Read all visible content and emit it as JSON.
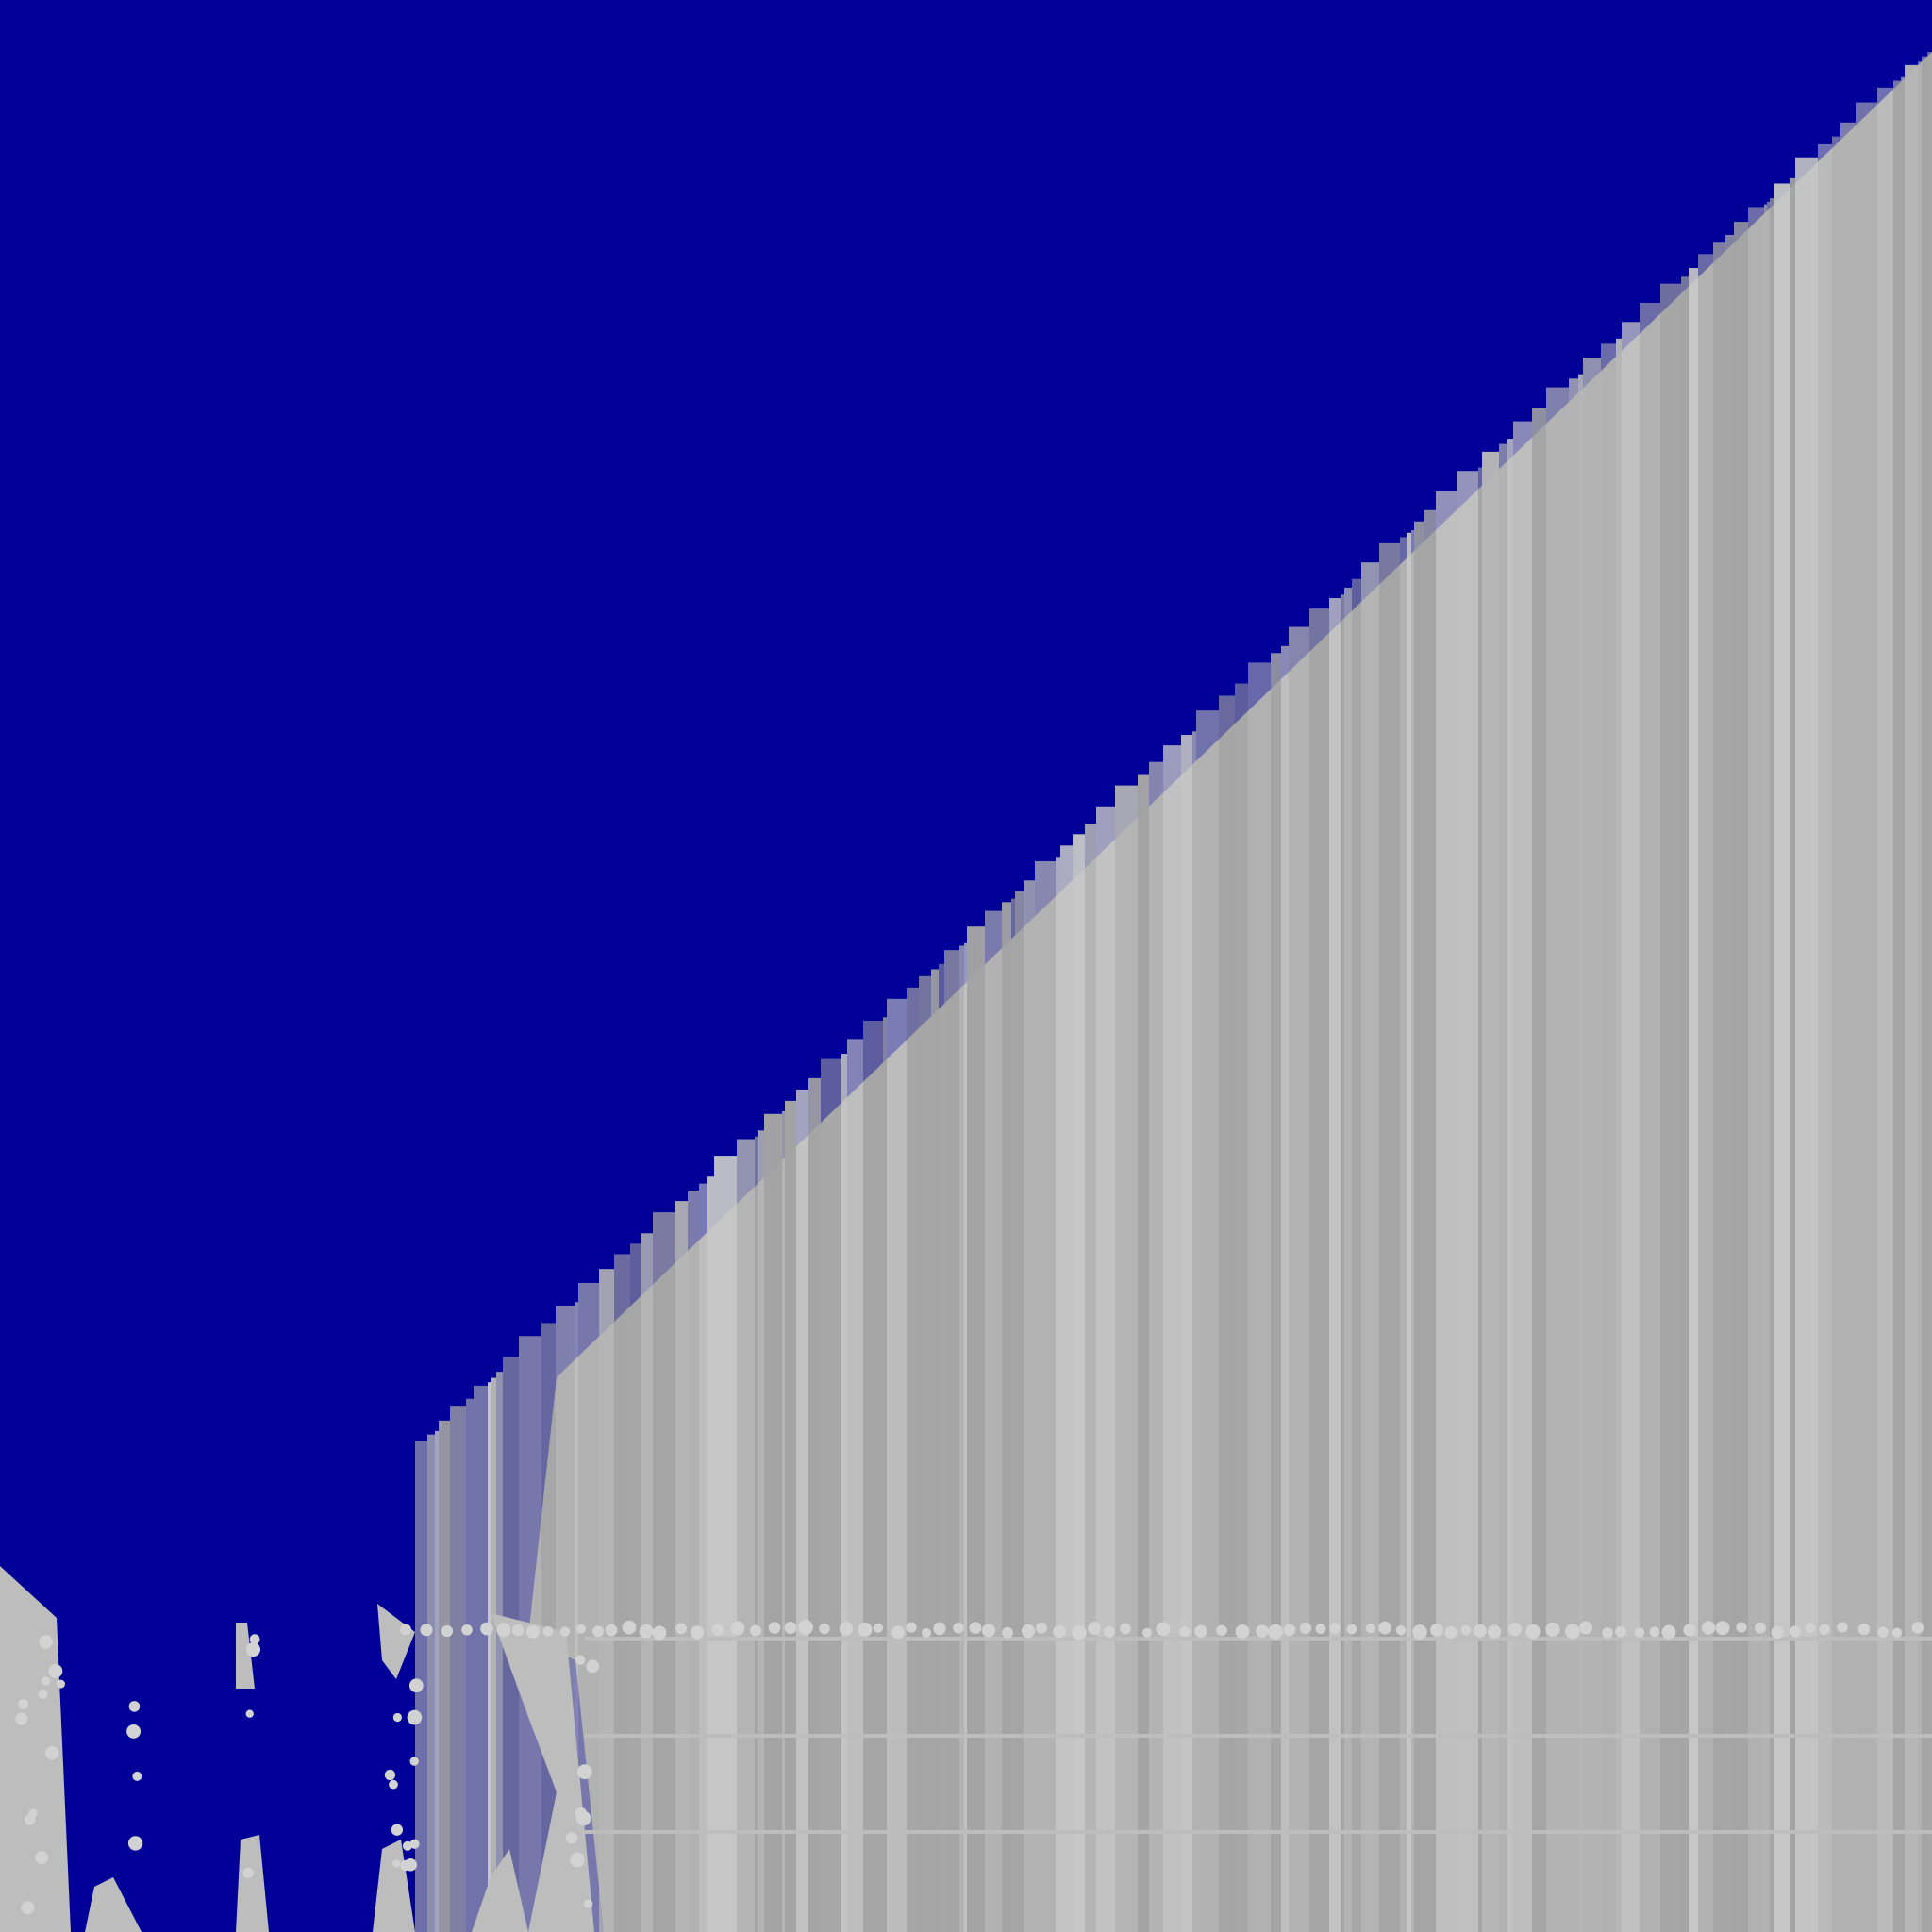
{
  "colors": {
    "fill": "#000099",
    "stripe_base": "#aaaaaa",
    "stripe_light": "#c8c8c8",
    "stripe_dark": "#a4a4a4",
    "bead": "#d2d2d2"
  }
}
